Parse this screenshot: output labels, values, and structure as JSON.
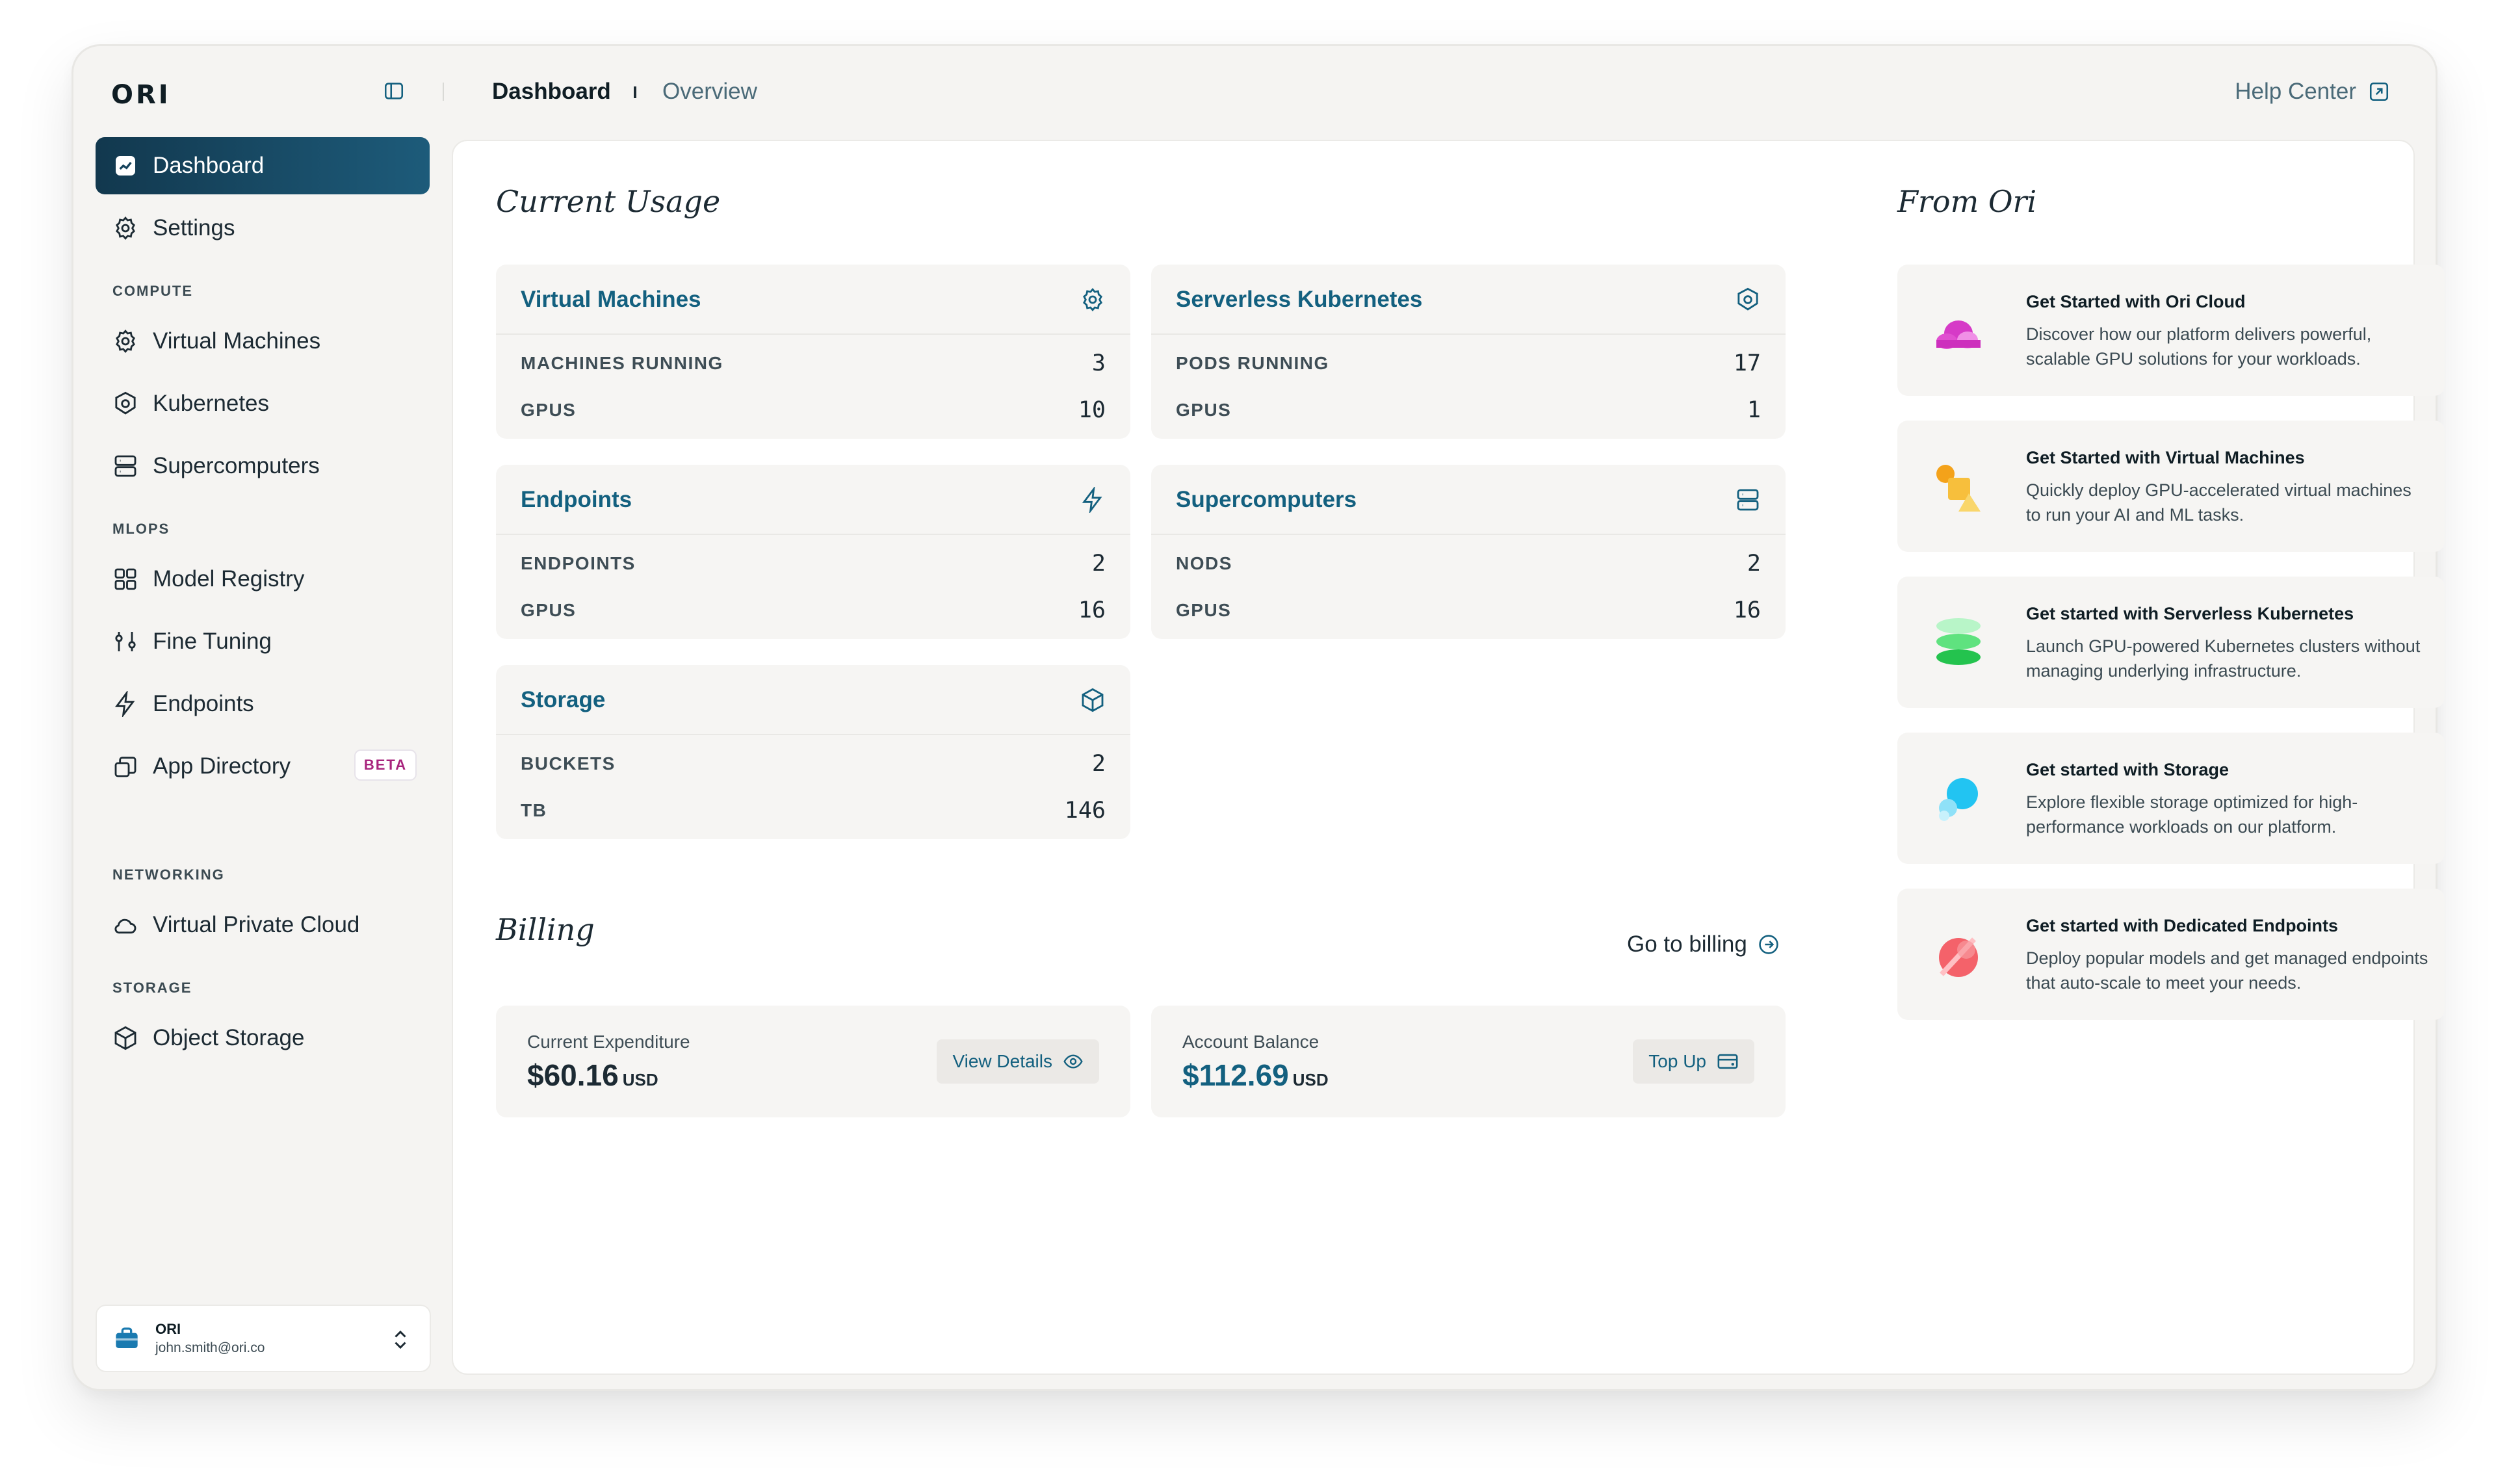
{
  "brand": {
    "logo": "ORI"
  },
  "breadcrumb": {
    "title": "Dashboard",
    "sub": "Overview"
  },
  "help": {
    "label": "Help Center"
  },
  "sidebar": {
    "items": [
      {
        "label": "Dashboard"
      },
      {
        "label": "Settings"
      },
      {
        "label": "Virtual Machines"
      },
      {
        "label": "Kubernetes"
      },
      {
        "label": "Supercomputers"
      },
      {
        "label": "Model Registry"
      },
      {
        "label": "Fine Tuning"
      },
      {
        "label": "Endpoints"
      },
      {
        "label": "App Directory",
        "badge": "BETA"
      },
      {
        "label": "Virtual Private Cloud"
      },
      {
        "label": "Object Storage"
      }
    ],
    "sections": [
      "COMPUTE",
      "MLOPS",
      "NETWORKING",
      "STORAGE"
    ]
  },
  "account": {
    "org": "ORI",
    "email": "john.smith@ori.co"
  },
  "usage": {
    "heading": "Current Usage",
    "cards": [
      {
        "title": "Virtual Machines",
        "icon": "cpu-icon",
        "rows": [
          {
            "label": "MACHINES RUNNING",
            "value": "3"
          },
          {
            "label": "GPUS",
            "value": "10"
          }
        ]
      },
      {
        "title": "Serverless Kubernetes",
        "icon": "kubernetes-icon",
        "rows": [
          {
            "label": "PODS RUNNING",
            "value": "17"
          },
          {
            "label": "GPUS",
            "value": "1"
          }
        ]
      },
      {
        "title": "Endpoints",
        "icon": "lightning-icon",
        "rows": [
          {
            "label": "ENDPOINTS",
            "value": "2"
          },
          {
            "label": "GPUS",
            "value": "16"
          }
        ]
      },
      {
        "title": "Supercomputers",
        "icon": "server-icon",
        "rows": [
          {
            "label": "NODS",
            "value": "2"
          },
          {
            "label": "GPUS",
            "value": "16"
          }
        ]
      },
      {
        "title": "Storage",
        "icon": "cube-icon",
        "rows": [
          {
            "label": "BUCKETS",
            "value": "2"
          },
          {
            "label": "TB",
            "value": "146"
          }
        ]
      }
    ]
  },
  "billing": {
    "heading": "Billing",
    "goto_label": "Go to billing",
    "expenditure": {
      "label": "Current Expenditure",
      "value": "$60.16",
      "unit": "USD",
      "button": "View Details"
    },
    "balance": {
      "label": "Account Balance",
      "value": "$112.69",
      "unit": "USD",
      "button": "Top Up",
      "value_color": "#13607f"
    }
  },
  "from_ori": {
    "heading": "From Ori",
    "items": [
      {
        "title": "Get Started with Ori Cloud",
        "desc": "Discover how our platform delivers powerful, scalable GPU solutions for your workloads."
      },
      {
        "title": "Get Started with Virtual Machines",
        "desc": "Quickly deploy GPU-accelerated virtual machines to run your AI and ML tasks."
      },
      {
        "title": "Get started with Serverless Kubernetes",
        "desc": "Launch GPU-powered Kubernetes clusters without managing underlying infrastructure."
      },
      {
        "title": "Get started with Storage",
        "desc": "Explore flexible storage optimized for high-performance workloads on our platform."
      },
      {
        "title": "Get started with Dedicated Endpoints",
        "desc": "Deploy popular models and get managed endpoints that auto-scale to meet your needs."
      }
    ]
  },
  "colors": {
    "accent": "#13607f",
    "active_nav": "#12384e",
    "beta": "#a8247d"
  }
}
